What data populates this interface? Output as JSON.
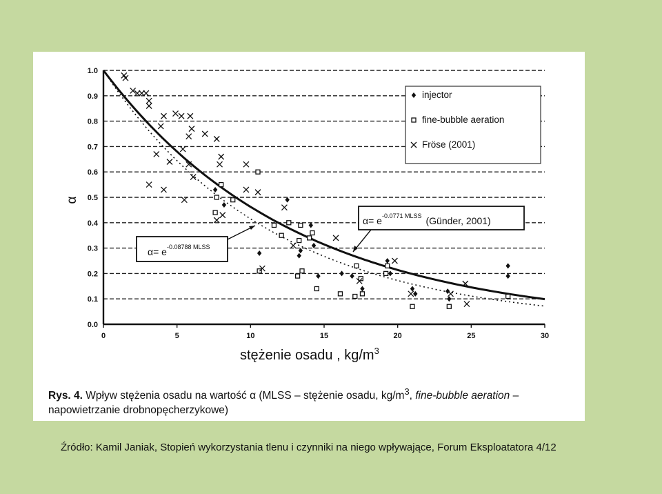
{
  "chart_data": {
    "type": "scatter",
    "ylabel": "α",
    "xlabel": "stężenie osadu , kg/m",
    "xlabel_sup": "3",
    "xlim": [
      0,
      30
    ],
    "ylim": [
      0,
      1.0
    ],
    "xticks": [
      "0",
      "5",
      "10",
      "15",
      "20",
      "25",
      "30"
    ],
    "yticks": [
      "0.0",
      "0.1",
      "0.2",
      "0.3",
      "0.4",
      "0.5",
      "0.6",
      "0.7",
      "0.8",
      "0.9",
      "1.0"
    ],
    "grid": "horizontal dashed",
    "legend_position": "top-right",
    "legend": [
      "injector",
      "fine-bubble aeration",
      "Fröse (2001)"
    ],
    "series": [
      {
        "name": "injector",
        "marker": "diamond",
        "points": [
          [
            7.6,
            0.53
          ],
          [
            8.2,
            0.47
          ],
          [
            10.6,
            0.28
          ],
          [
            12.5,
            0.49
          ],
          [
            13.3,
            0.27
          ],
          [
            13.4,
            0.29
          ],
          [
            14.1,
            0.39
          ],
          [
            14.3,
            0.31
          ],
          [
            14.6,
            0.19
          ],
          [
            16.2,
            0.2
          ],
          [
            16.9,
            0.19
          ],
          [
            17.6,
            0.14
          ],
          [
            19.3,
            0.25
          ],
          [
            19.5,
            0.2
          ],
          [
            21.0,
            0.14
          ],
          [
            21.2,
            0.12
          ],
          [
            23.4,
            0.13
          ],
          [
            23.5,
            0.1
          ],
          [
            27.5,
            0.23
          ],
          [
            27.5,
            0.19
          ]
        ]
      },
      {
        "name": "fine-bubble aeration",
        "marker": "square",
        "points": [
          [
            7.6,
            0.44
          ],
          [
            7.7,
            0.5
          ],
          [
            8.0,
            0.55
          ],
          [
            8.8,
            0.49
          ],
          [
            10.5,
            0.6
          ],
          [
            10.6,
            0.21
          ],
          [
            11.6,
            0.39
          ],
          [
            12.1,
            0.35
          ],
          [
            12.6,
            0.4
          ],
          [
            13.2,
            0.19
          ],
          [
            13.3,
            0.33
          ],
          [
            13.4,
            0.39
          ],
          [
            13.5,
            0.21
          ],
          [
            14.0,
            0.34
          ],
          [
            14.2,
            0.36
          ],
          [
            14.5,
            0.14
          ],
          [
            16.1,
            0.12
          ],
          [
            17.1,
            0.11
          ],
          [
            17.2,
            0.23
          ],
          [
            17.5,
            0.18
          ],
          [
            17.6,
            0.12
          ],
          [
            19.2,
            0.2
          ],
          [
            19.3,
            0.23
          ],
          [
            21.0,
            0.07
          ],
          [
            23.5,
            0.07
          ],
          [
            27.5,
            0.11
          ]
        ]
      },
      {
        "name": "Fröse (2001)",
        "marker": "x",
        "points": [
          [
            1.4,
            0.98
          ],
          [
            1.5,
            0.97
          ],
          [
            2.0,
            0.92
          ],
          [
            2.3,
            0.91
          ],
          [
            2.6,
            0.91
          ],
          [
            2.9,
            0.91
          ],
          [
            3.1,
            0.88
          ],
          [
            3.1,
            0.86
          ],
          [
            3.1,
            0.55
          ],
          [
            3.6,
            0.67
          ],
          [
            3.9,
            0.78
          ],
          [
            4.1,
            0.82
          ],
          [
            4.1,
            0.53
          ],
          [
            4.5,
            0.64
          ],
          [
            4.9,
            0.83
          ],
          [
            5.3,
            0.82
          ],
          [
            5.4,
            0.69
          ],
          [
            5.5,
            0.49
          ],
          [
            5.8,
            0.74
          ],
          [
            5.8,
            0.63
          ],
          [
            5.9,
            0.82
          ],
          [
            6.0,
            0.77
          ],
          [
            6.1,
            0.58
          ],
          [
            6.9,
            0.75
          ],
          [
            7.7,
            0.73
          ],
          [
            7.7,
            0.41
          ],
          [
            7.9,
            0.63
          ],
          [
            8.0,
            0.66
          ],
          [
            8.1,
            0.43
          ],
          [
            9.7,
            0.63
          ],
          [
            9.7,
            0.53
          ],
          [
            10.5,
            0.52
          ],
          [
            10.8,
            0.22
          ],
          [
            12.3,
            0.46
          ],
          [
            12.9,
            0.31
          ],
          [
            15.8,
            0.34
          ],
          [
            17.4,
            0.17
          ],
          [
            19.8,
            0.25
          ],
          [
            20.9,
            0.12
          ],
          [
            23.6,
            0.12
          ],
          [
            24.6,
            0.16
          ],
          [
            24.7,
            0.08
          ]
        ]
      }
    ],
    "curves": [
      {
        "label_base": "α= e",
        "label_exp": "-0.0771 MLSS",
        "label_source": "(Günder, 2001)",
        "k": 0.0771,
        "style": "solid"
      },
      {
        "label_base": "α= e",
        "label_exp": "-0.08788 MLSS",
        "label_source": "",
        "k": 0.08788,
        "style": "dotted"
      }
    ]
  },
  "caption": {
    "label": "Rys. 4.",
    "text_a": " Wpływ stężenia osadu na wartość ",
    "alpha": "α",
    "text_b": " (MLSS – stężenie osadu, kg/m",
    "sup": "3",
    "text_c": ", ",
    "italic": "fine-bubble aeration",
    "text_d": " – napowietrzanie drobnopęcherzykowe)"
  },
  "source": "Źródło: Kamil Janiak, Stopień wykorzystania tlenu i czynniki na niego wpływające, Forum Eksploatatora 4/12"
}
